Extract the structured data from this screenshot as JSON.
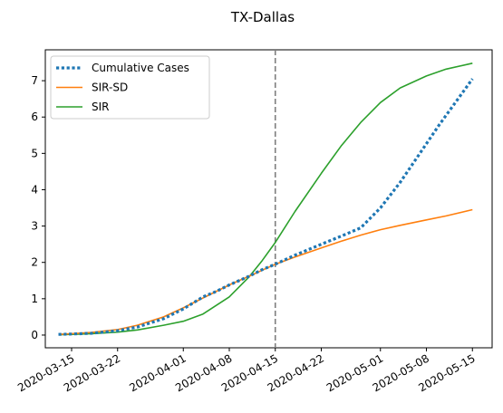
{
  "chart_data": {
    "type": "line",
    "title": "TX-Dallas",
    "xlabel": "",
    "ylabel": "",
    "x_axis_type": "date",
    "xlim": [
      "2020-03-11",
      "2020-05-18"
    ],
    "ylim": [
      -0.35,
      7.85
    ],
    "x_ticks": [
      "2020-03-15",
      "2020-03-22",
      "2020-04-01",
      "2020-04-08",
      "2020-04-15",
      "2020-04-22",
      "2020-05-01",
      "2020-05-08",
      "2020-05-15"
    ],
    "y_ticks": [
      0,
      1,
      2,
      3,
      4,
      5,
      6,
      7
    ],
    "grid": false,
    "legend_position": "top-left",
    "vertical_line": {
      "x": "2020-04-15",
      "style": "dashed",
      "color": "#7f7f7f"
    },
    "series": [
      {
        "name": "Cumulative Cases",
        "color": "#1f77b4",
        "style": "dotted",
        "points": [
          [
            "2020-03-13",
            0.02
          ],
          [
            "2020-03-15",
            0.03
          ],
          [
            "2020-03-18",
            0.05
          ],
          [
            "2020-03-22",
            0.12
          ],
          [
            "2020-03-25",
            0.22
          ],
          [
            "2020-03-29",
            0.45
          ],
          [
            "2020-04-01",
            0.72
          ],
          [
            "2020-04-04",
            1.05
          ],
          [
            "2020-04-06",
            1.2
          ],
          [
            "2020-04-08",
            1.38
          ],
          [
            "2020-04-11",
            1.62
          ],
          [
            "2020-04-13",
            1.8
          ],
          [
            "2020-04-15",
            1.95
          ],
          [
            "2020-04-18",
            2.2
          ],
          [
            "2020-04-22",
            2.5
          ],
          [
            "2020-04-25",
            2.72
          ],
          [
            "2020-04-28",
            2.95
          ],
          [
            "2020-05-01",
            3.5
          ],
          [
            "2020-05-04",
            4.2
          ],
          [
            "2020-05-07",
            5.0
          ],
          [
            "2020-05-10",
            5.8
          ],
          [
            "2020-05-13",
            6.55
          ],
          [
            "2020-05-15",
            7.05
          ]
        ]
      },
      {
        "name": "SIR-SD",
        "color": "#ff7f0e",
        "style": "solid",
        "points": [
          [
            "2020-03-13",
            0.02
          ],
          [
            "2020-03-15",
            0.04
          ],
          [
            "2020-03-18",
            0.07
          ],
          [
            "2020-03-22",
            0.15
          ],
          [
            "2020-03-25",
            0.27
          ],
          [
            "2020-03-29",
            0.5
          ],
          [
            "2020-04-01",
            0.75
          ],
          [
            "2020-04-04",
            1.02
          ],
          [
            "2020-04-08",
            1.38
          ],
          [
            "2020-04-11",
            1.62
          ],
          [
            "2020-04-15",
            1.95
          ],
          [
            "2020-04-18",
            2.15
          ],
          [
            "2020-04-22",
            2.4
          ],
          [
            "2020-04-25",
            2.58
          ],
          [
            "2020-04-28",
            2.75
          ],
          [
            "2020-05-01",
            2.9
          ],
          [
            "2020-05-04",
            3.02
          ],
          [
            "2020-05-08",
            3.17
          ],
          [
            "2020-05-11",
            3.28
          ],
          [
            "2020-05-15",
            3.45
          ]
        ]
      },
      {
        "name": "SIR",
        "color": "#2ca02c",
        "style": "solid",
        "points": [
          [
            "2020-03-13",
            0.01
          ],
          [
            "2020-03-15",
            0.02
          ],
          [
            "2020-03-18",
            0.04
          ],
          [
            "2020-03-22",
            0.08
          ],
          [
            "2020-03-25",
            0.14
          ],
          [
            "2020-03-29",
            0.27
          ],
          [
            "2020-04-01",
            0.38
          ],
          [
            "2020-04-04",
            0.58
          ],
          [
            "2020-04-08",
            1.05
          ],
          [
            "2020-04-11",
            1.6
          ],
          [
            "2020-04-13",
            2.05
          ],
          [
            "2020-04-15",
            2.55
          ],
          [
            "2020-04-18",
            3.4
          ],
          [
            "2020-04-22",
            4.45
          ],
          [
            "2020-04-25",
            5.2
          ],
          [
            "2020-04-28",
            5.85
          ],
          [
            "2020-05-01",
            6.4
          ],
          [
            "2020-05-04",
            6.8
          ],
          [
            "2020-05-08",
            7.13
          ],
          [
            "2020-05-11",
            7.32
          ],
          [
            "2020-05-15",
            7.48
          ]
        ]
      }
    ]
  }
}
